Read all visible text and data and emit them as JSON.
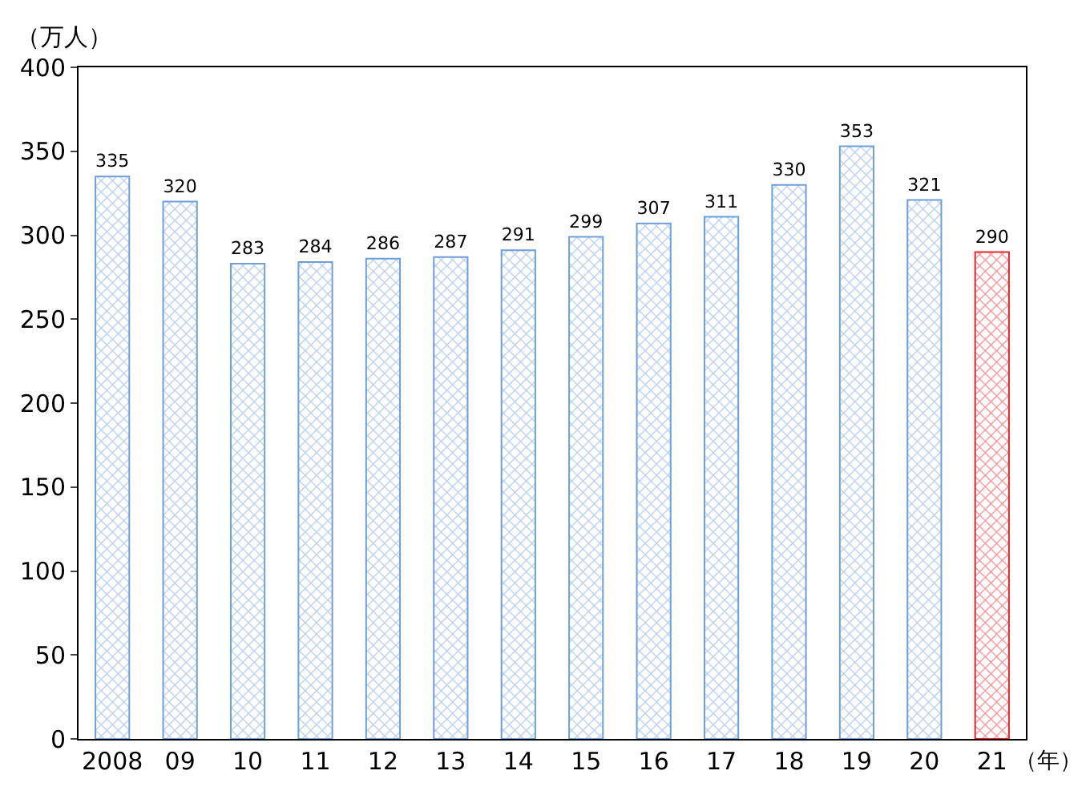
{
  "chart_data": {
    "type": "bar",
    "ylabel": "（万人）",
    "xlabel": "（年）",
    "categories": [
      "2008",
      "09",
      "10",
      "11",
      "12",
      "13",
      "14",
      "15",
      "16",
      "17",
      "18",
      "19",
      "20",
      "21"
    ],
    "values": [
      335,
      320,
      283,
      284,
      286,
      287,
      291,
      299,
      307,
      311,
      330,
      353,
      321,
      290
    ],
    "colors": [
      "#6f9fd8",
      "#6f9fd8",
      "#6f9fd8",
      "#6f9fd8",
      "#6f9fd8",
      "#6f9fd8",
      "#6f9fd8",
      "#6f9fd8",
      "#6f9fd8",
      "#6f9fd8",
      "#6f9fd8",
      "#6f9fd8",
      "#6f9fd8",
      "#e8242c"
    ],
    "ylim": [
      0,
      400
    ],
    "yticks": [
      0,
      50,
      100,
      150,
      200,
      250,
      300,
      350,
      400
    ],
    "data_labels": true
  }
}
